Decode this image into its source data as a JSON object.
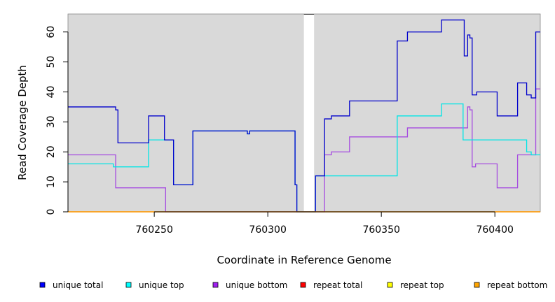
{
  "chart_data": {
    "type": "line",
    "title": "",
    "xlabel": "Coordinate in Reference Genome",
    "ylabel": "Read Coverage Depth",
    "xlim": [
      760212,
      760420
    ],
    "ylim": [
      0,
      66
    ],
    "xticks": [
      760250,
      760300,
      760350,
      760400
    ],
    "yticks": [
      0,
      10,
      20,
      30,
      40,
      50,
      60
    ],
    "grid": false,
    "background": "#d9d9d9",
    "gaps": [
      [
        760312.8,
        760321
      ]
    ],
    "legend_position": "bottom",
    "series": [
      {
        "name": "unique total",
        "color": "#0000cc",
        "legend_color": "#0000ff",
        "points": [
          [
            760212,
            35
          ],
          [
            760233,
            35
          ],
          [
            760233,
            34
          ],
          [
            760234,
            34
          ],
          [
            760234,
            23
          ],
          [
            760247.5,
            23
          ],
          [
            760247.5,
            32
          ],
          [
            760254.5,
            32
          ],
          [
            760254.5,
            24
          ],
          [
            760258.5,
            24
          ],
          [
            760258.5,
            9
          ],
          [
            760267,
            9
          ],
          [
            760267,
            27
          ],
          [
            760291,
            27
          ],
          [
            760291,
            26
          ],
          [
            760292,
            26
          ],
          [
            760292,
            27
          ],
          [
            760312,
            27
          ],
          [
            760312,
            9
          ],
          [
            760312.8,
            9
          ],
          [
            760312.8,
            0
          ],
          [
            760321,
            0
          ],
          [
            760321,
            12
          ],
          [
            760325,
            12
          ],
          [
            760325,
            31
          ],
          [
            760328,
            31
          ],
          [
            760328,
            32
          ],
          [
            760336,
            32
          ],
          [
            760336,
            37
          ],
          [
            760357,
            37
          ],
          [
            760357,
            57
          ],
          [
            760361.5,
            57
          ],
          [
            760361.5,
            60
          ],
          [
            760376.5,
            60
          ],
          [
            760376.5,
            64
          ],
          [
            760386.5,
            64
          ],
          [
            760386.5,
            52
          ],
          [
            760388,
            52
          ],
          [
            760388,
            59
          ],
          [
            760389,
            59
          ],
          [
            760389,
            58
          ],
          [
            760390,
            58
          ],
          [
            760390,
            39
          ],
          [
            760392,
            39
          ],
          [
            760392,
            40
          ],
          [
            760401,
            40
          ],
          [
            760401,
            32
          ],
          [
            760410,
            32
          ],
          [
            760410,
            43
          ],
          [
            760414,
            43
          ],
          [
            760414,
            39
          ],
          [
            760416,
            39
          ],
          [
            760416,
            38
          ],
          [
            760418,
            38
          ],
          [
            760418,
            60
          ],
          [
            760420,
            60
          ]
        ]
      },
      {
        "name": "unique top",
        "color": "#00e5e5",
        "legend_color": "#00ffff",
        "points": [
          [
            760212,
            16
          ],
          [
            760232,
            16
          ],
          [
            760232,
            15
          ],
          [
            760247.5,
            15
          ],
          [
            760247.5,
            24
          ],
          [
            760258.5,
            24
          ],
          [
            760258.5,
            9
          ],
          [
            760267,
            9
          ],
          [
            760267,
            27
          ],
          [
            760291,
            27
          ],
          [
            760291,
            26
          ],
          [
            760292,
            26
          ],
          [
            760292,
            27
          ],
          [
            760312,
            27
          ],
          [
            760312,
            9
          ],
          [
            760312.8,
            9
          ],
          [
            760312.8,
            0
          ],
          [
            760321,
            0
          ],
          [
            760321,
            12
          ],
          [
            760357,
            12
          ],
          [
            760357,
            32
          ],
          [
            760376.5,
            32
          ],
          [
            760376.5,
            36
          ],
          [
            760386,
            36
          ],
          [
            760386,
            24
          ],
          [
            760414,
            24
          ],
          [
            760414,
            20
          ],
          [
            760416,
            20
          ],
          [
            760416,
            19
          ],
          [
            760420,
            19
          ]
        ]
      },
      {
        "name": "unique bottom",
        "color": "#a64ce0",
        "legend_color": "#a020f0",
        "points": [
          [
            760212,
            19
          ],
          [
            760233,
            19
          ],
          [
            760233,
            8
          ],
          [
            760255,
            8
          ],
          [
            760255,
            0
          ],
          [
            760325,
            0
          ],
          [
            760325,
            19
          ],
          [
            760328,
            19
          ],
          [
            760328,
            20
          ],
          [
            760336,
            20
          ],
          [
            760336,
            25
          ],
          [
            760361.5,
            25
          ],
          [
            760361.5,
            28
          ],
          [
            760388,
            28
          ],
          [
            760388,
            35
          ],
          [
            760389,
            35
          ],
          [
            760389,
            34
          ],
          [
            760390,
            34
          ],
          [
            760390,
            15
          ],
          [
            760391.5,
            15
          ],
          [
            760391.5,
            16
          ],
          [
            760401,
            16
          ],
          [
            760401,
            8
          ],
          [
            760410,
            8
          ],
          [
            760410,
            19
          ],
          [
            760418,
            19
          ],
          [
            760418,
            41
          ],
          [
            760420,
            41
          ]
        ]
      },
      {
        "name": "repeat total",
        "color": "#ff0000",
        "legend_color": "#ff0000",
        "points": [
          [
            760212,
            0
          ],
          [
            760420,
            0
          ]
        ]
      },
      {
        "name": "repeat top",
        "color": "#ffff00",
        "legend_color": "#ffff00",
        "points": [
          [
            760212,
            0
          ],
          [
            760420,
            0
          ]
        ]
      },
      {
        "name": "repeat bottom",
        "color": "#ff9900",
        "legend_color": "#ffa500",
        "points": [
          [
            760212,
            0
          ],
          [
            760420,
            0
          ]
        ]
      }
    ]
  }
}
